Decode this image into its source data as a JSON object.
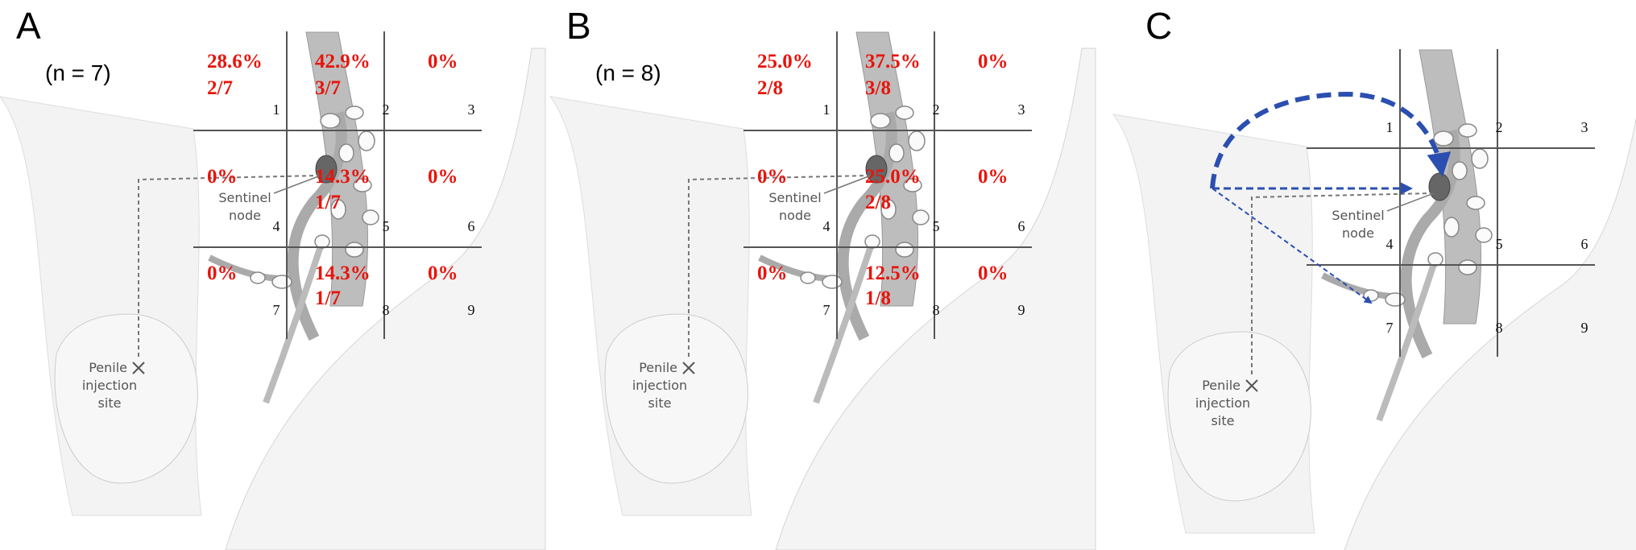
{
  "panels": [
    {
      "label": "A",
      "n": "(n = 7)",
      "zones": [
        {
          "number": "1",
          "percent": "28.6%",
          "fraction": "2/7"
        },
        {
          "number": "2",
          "percent": "42.9%",
          "fraction": "3/7"
        },
        {
          "number": "3",
          "percent": "0%"
        },
        {
          "number": "4",
          "percent": "0%"
        },
        {
          "number": "5",
          "percent": "14.3%",
          "fraction": "1/7"
        },
        {
          "number": "6",
          "percent": "0%"
        },
        {
          "number": "7",
          "percent": "0%"
        },
        {
          "number": "8",
          "percent": "14.3%",
          "fraction": "1/7"
        },
        {
          "number": "9",
          "percent": "0%"
        }
      ],
      "sentinel": [
        "Sentinel",
        "node"
      ],
      "injection": [
        "Penile",
        "injection",
        "site"
      ]
    },
    {
      "label": "B",
      "n": "(n = 8)",
      "zones": [
        {
          "number": "1",
          "percent": "25.0%",
          "fraction": "2/8"
        },
        {
          "number": "2",
          "percent": "37.5%",
          "fraction": "3/8"
        },
        {
          "number": "3",
          "percent": "0%"
        },
        {
          "number": "4",
          "percent": "0%"
        },
        {
          "number": "5",
          "percent": "25.0%",
          "fraction": "2/8"
        },
        {
          "number": "6",
          "percent": "0%"
        },
        {
          "number": "7",
          "percent": "0%"
        },
        {
          "number": "8",
          "percent": "12.5%",
          "fraction": "1/8"
        },
        {
          "number": "9",
          "percent": "0%"
        }
      ],
      "sentinel": [
        "Sentinel",
        "node"
      ],
      "injection": [
        "Penile",
        "injection",
        "site"
      ]
    },
    {
      "label": "C",
      "zones": [
        {
          "number": "1"
        },
        {
          "number": "2"
        },
        {
          "number": "3"
        },
        {
          "number": "4"
        },
        {
          "number": "5"
        },
        {
          "number": "6"
        },
        {
          "number": "7"
        },
        {
          "number": "8"
        },
        {
          "number": "9"
        }
      ],
      "sentinel": [
        "Sentinel",
        "node"
      ],
      "injection": [
        "Penile",
        "injection",
        "site"
      ]
    }
  ]
}
